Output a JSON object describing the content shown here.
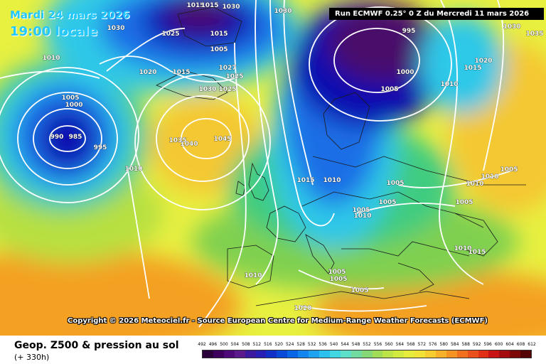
{
  "header": {
    "date_text": "Mardi 24 mars 2026",
    "time_text": "19:00 locale",
    "run_text": "Run ECMWF 0.25° 0 Z du Mercredi 11 mars 2026"
  },
  "copyright_text": "Copyright © 2026 Meteociel.fr - Source European Centre for Medium-Range Weather Forecasts (ECMWF)",
  "footer": {
    "product_title": "Geop. Z500 & pression au sol",
    "lead_time": "(+ 330h)"
  },
  "colors": {
    "low_center": "#4a0f6a",
    "deep_blue": "#1010b0",
    "blue": "#1e6ee6",
    "cyan": "#2fc8e8",
    "green": "#66cc55",
    "yellow": "#e8f040",
    "orange": "#f4a020",
    "isobar": "#ffffff"
  },
  "scale": {
    "labels": [
      "492",
      "496",
      "500",
      "504",
      "508",
      "512",
      "516",
      "520",
      "524",
      "528",
      "532",
      "536",
      "540",
      "544",
      "548",
      "552",
      "556",
      "560",
      "564",
      "568",
      "572",
      "576",
      "580",
      "584",
      "588",
      "592",
      "596",
      "600",
      "604",
      "608",
      "612"
    ],
    "colors": [
      "#2a003a",
      "#3c005c",
      "#4e0a78",
      "#5a1a8c",
      "#3c1aa0",
      "#2820b4",
      "#1030c8",
      "#0a4ad8",
      "#0a66e6",
      "#1484ee",
      "#1ea2f0",
      "#2cc0ee",
      "#40d6e2",
      "#5ee0c8",
      "#72dca0",
      "#86d876",
      "#a0dc56",
      "#bce448",
      "#d2ea40",
      "#e6ec3c",
      "#f2e238",
      "#f6cc30",
      "#f6b02a",
      "#f49224",
      "#f07020",
      "#ea501c",
      "#e03018",
      "#c81414",
      "#a40c10",
      "#7c0808",
      "#540404"
    ]
  },
  "pressure_labels": [
    {
      "text": "1015"
    },
    {
      "text": "1015"
    },
    {
      "text": "1030"
    },
    {
      "text": "1030"
    },
    {
      "text": "1025"
    },
    {
      "text": "1015"
    },
    {
      "text": "1005"
    },
    {
      "text": "1030"
    },
    {
      "text": "995"
    },
    {
      "text": "1030"
    },
    {
      "text": "1035"
    },
    {
      "text": "1010"
    },
    {
      "text": "1020"
    },
    {
      "text": "1015"
    },
    {
      "text": "1000"
    },
    {
      "text": "1027"
    },
    {
      "text": "1025"
    },
    {
      "text": "1005"
    },
    {
      "text": "1020"
    },
    {
      "text": "1015"
    },
    {
      "text": "1030"
    },
    {
      "text": "1025"
    },
    {
      "text": "1010"
    },
    {
      "text": "1005"
    },
    {
      "text": "1000"
    },
    {
      "text": "990"
    },
    {
      "text": "985"
    },
    {
      "text": "995"
    },
    {
      "text": "1040"
    },
    {
      "text": "1045"
    },
    {
      "text": "1035"
    },
    {
      "text": "1010"
    },
    {
      "text": "1015"
    },
    {
      "text": "1010"
    },
    {
      "text": "1005"
    },
    {
      "text": "1005"
    },
    {
      "text": "1005"
    },
    {
      "text": "1010"
    },
    {
      "text": "1005"
    },
    {
      "text": "1010"
    },
    {
      "text": "1010"
    },
    {
      "text": "1005"
    },
    {
      "text": "1005"
    },
    {
      "text": "1005"
    },
    {
      "text": "1005"
    },
    {
      "text": "1010"
    },
    {
      "text": "1015"
    },
    {
      "text": "1010"
    },
    {
      "text": "1020"
    }
  ]
}
